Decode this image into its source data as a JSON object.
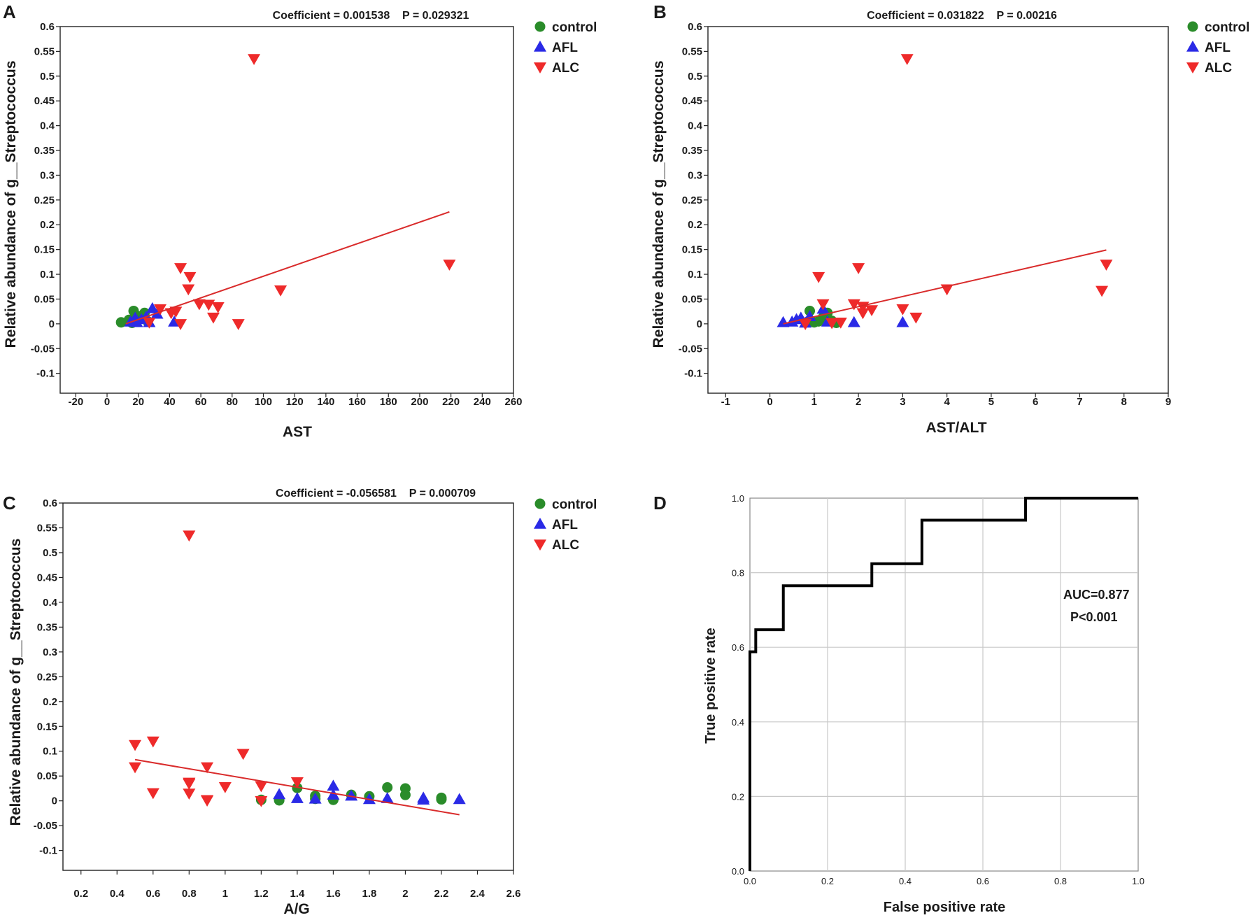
{
  "chart_data": [
    {
      "panel": "A",
      "type": "scatter",
      "stats": "Coefficient = 0.001538    P = 0.029321",
      "xlabel": "AST",
      "ylabel": "Relative abundance of g__Streptococcus",
      "xlim": [
        -30,
        260
      ],
      "ylim": [
        -0.14,
        0.6
      ],
      "xticks": [
        -20,
        0,
        20,
        40,
        60,
        80,
        100,
        120,
        140,
        160,
        180,
        200,
        220,
        240,
        260
      ],
      "yticks": [
        -0.1,
        -0.05,
        0,
        0.05,
        0.1,
        0.15,
        0.2,
        0.25,
        0.3,
        0.35,
        0.4,
        0.45,
        0.5,
        0.55,
        0.6
      ],
      "legend_position": "top-right outside",
      "fit_line": {
        "x": [
          12,
          219
        ],
        "y": [
          0.0,
          0.226
        ]
      },
      "series": [
        {
          "name": "control",
          "marker": "circle",
          "color": "#2a8c2a",
          "points": [
            [
              9,
              0.003
            ],
            [
              14,
              0.008
            ],
            [
              17,
              0.026
            ],
            [
              20,
              0.015
            ],
            [
              24,
              0.022
            ],
            [
              26,
              0.005
            ],
            [
              16,
              0.002
            ]
          ]
        },
        {
          "name": "AFL",
          "marker": "triangle-up",
          "color": "#2a2ae6",
          "points": [
            [
              15,
              0.004
            ],
            [
              19,
              0.003
            ],
            [
              22,
              0.009
            ],
            [
              25,
              0.014
            ],
            [
              27,
              0.003
            ],
            [
              29,
              0.031
            ],
            [
              32,
              0.02
            ],
            [
              43,
              0.004
            ],
            [
              18,
              0.012
            ]
          ]
        },
        {
          "name": "ALC",
          "marker": "triangle-down",
          "color": "#ee2a2a",
          "points": [
            [
              94,
              0.535
            ],
            [
              219,
              0.12
            ],
            [
              47,
              0.113
            ],
            [
              53,
              0.095
            ],
            [
              52,
              0.07
            ],
            [
              111,
              0.068
            ],
            [
              41,
              0.022
            ],
            [
              44,
              0.025
            ],
            [
              59,
              0.04
            ],
            [
              65,
              0.039
            ],
            [
              71,
              0.034
            ],
            [
              34,
              0.03
            ],
            [
              68,
              0.013
            ],
            [
              84,
              0.0
            ],
            [
              47,
              0.0
            ],
            [
              27,
              0.003
            ]
          ]
        }
      ]
    },
    {
      "panel": "B",
      "type": "scatter",
      "stats": "Coefficient = 0.031822    P = 0.00216",
      "xlabel": "AST/ALT",
      "ylabel": "Relative abundance of g__Streptococcus",
      "xlim": [
        -1.4,
        9
      ],
      "ylim": [
        -0.14,
        0.6
      ],
      "xticks": [
        -1,
        0,
        1,
        2,
        3,
        4,
        5,
        6,
        7,
        8,
        9
      ],
      "yticks": [
        -0.1,
        -0.05,
        0,
        0.05,
        0.1,
        0.15,
        0.2,
        0.25,
        0.3,
        0.35,
        0.4,
        0.45,
        0.5,
        0.55,
        0.6
      ],
      "legend_position": "top-right outside",
      "fit_line": {
        "x": [
          0.3,
          7.6
        ],
        "y": [
          0.0,
          0.149
        ]
      },
      "series": [
        {
          "name": "control",
          "marker": "circle",
          "color": "#2a8c2a",
          "points": [
            [
              0.9,
              0.026
            ],
            [
              1.0,
              0.003
            ],
            [
              1.2,
              0.013
            ],
            [
              1.3,
              0.022
            ],
            [
              1.4,
              0.006
            ],
            [
              1.5,
              0.002
            ],
            [
              1.1,
              0.005
            ]
          ]
        },
        {
          "name": "AFL",
          "marker": "triangle-up",
          "color": "#2a2ae6",
          "points": [
            [
              0.3,
              0.003
            ],
            [
              0.5,
              0.004
            ],
            [
              0.6,
              0.009
            ],
            [
              0.7,
              0.012
            ],
            [
              0.9,
              0.015
            ],
            [
              1.2,
              0.03
            ],
            [
              1.3,
              0.004
            ],
            [
              1.9,
              0.003
            ],
            [
              3.0,
              0.003
            ],
            [
              0.8,
              0.002
            ]
          ]
        },
        {
          "name": "ALC",
          "marker": "triangle-down",
          "color": "#ee2a2a",
          "points": [
            [
              3.1,
              0.535
            ],
            [
              7.6,
              0.12
            ],
            [
              2.0,
              0.113
            ],
            [
              1.1,
              0.095
            ],
            [
              7.5,
              0.067
            ],
            [
              4.0,
              0.07
            ],
            [
              1.2,
              0.04
            ],
            [
              1.9,
              0.04
            ],
            [
              2.1,
              0.035
            ],
            [
              2.3,
              0.028
            ],
            [
              3.0,
              0.03
            ],
            [
              3.3,
              0.013
            ],
            [
              0.8,
              0.0
            ],
            [
              1.6,
              0.003
            ],
            [
              1.4,
              0.002
            ],
            [
              2.1,
              0.022
            ]
          ]
        }
      ]
    },
    {
      "panel": "C",
      "type": "scatter",
      "stats": "Coefficient = -0.056581    P = 0.000709",
      "xlabel": "A/G",
      "ylabel": "Relative abundance of g__Streptococcus",
      "xlim": [
        0.1,
        2.6
      ],
      "ylim": [
        -0.14,
        0.6
      ],
      "xticks": [
        0.2,
        0.4,
        0.6,
        0.8,
        1,
        1.2,
        1.4,
        1.6,
        1.8,
        2,
        2.2,
        2.4,
        2.6
      ],
      "yticks": [
        -0.1,
        -0.05,
        0,
        0.05,
        0.1,
        0.15,
        0.2,
        0.25,
        0.3,
        0.35,
        0.4,
        0.45,
        0.5,
        0.55,
        0.6
      ],
      "legend_position": "top-right outside",
      "fit_line": {
        "x": [
          0.5,
          2.3
        ],
        "y": [
          0.083,
          -0.028
        ]
      },
      "series": [
        {
          "name": "control",
          "marker": "circle",
          "color": "#2a8c2a",
          "points": [
            [
              1.2,
              0.002
            ],
            [
              1.3,
              0.001
            ],
            [
              1.4,
              0.026
            ],
            [
              1.5,
              0.01
            ],
            [
              1.6,
              0.002
            ],
            [
              1.7,
              0.012
            ],
            [
              1.8,
              0.009
            ],
            [
              1.9,
              0.027
            ],
            [
              2.0,
              0.025
            ],
            [
              2.0,
              0.012
            ],
            [
              2.2,
              0.003
            ],
            [
              2.2,
              0.006
            ],
            [
              1.5,
              0.004
            ]
          ]
        },
        {
          "name": "AFL",
          "marker": "triangle-up",
          "color": "#2a2ae6",
          "points": [
            [
              1.3,
              0.013
            ],
            [
              1.4,
              0.005
            ],
            [
              1.5,
              0.004
            ],
            [
              1.6,
              0.03
            ],
            [
              1.6,
              0.012
            ],
            [
              1.7,
              0.01
            ],
            [
              1.8,
              0.003
            ],
            [
              1.9,
              0.005
            ],
            [
              2.1,
              0.006
            ],
            [
              2.1,
              0.002
            ],
            [
              2.3,
              0.003
            ]
          ]
        },
        {
          "name": "ALC",
          "marker": "triangle-down",
          "color": "#ee2a2a",
          "points": [
            [
              0.8,
              0.535
            ],
            [
              0.5,
              0.113
            ],
            [
              0.6,
              0.12
            ],
            [
              0.5,
              0.068
            ],
            [
              0.6,
              0.016
            ],
            [
              0.8,
              0.037
            ],
            [
              0.8,
              0.015
            ],
            [
              0.8,
              0.035
            ],
            [
              0.9,
              0.068
            ],
            [
              0.9,
              0.001
            ],
            [
              1.0,
              0.028
            ],
            [
              1.1,
              0.095
            ],
            [
              1.2,
              0.03
            ],
            [
              1.2,
              0.0
            ],
            [
              1.4,
              0.038
            ],
            [
              0.9,
              0.002
            ]
          ]
        }
      ]
    },
    {
      "panel": "D",
      "type": "line",
      "subtype": "roc",
      "xlabel": "False positive rate",
      "ylabel": "True positive rate",
      "xlim": [
        0,
        1
      ],
      "ylim": [
        0,
        1
      ],
      "xticks": [
        "0.0",
        "0.2",
        "0.4",
        "0.6",
        "0.8",
        "1.0"
      ],
      "yticks": [
        "0.0",
        "0.2",
        "0.4",
        "0.6",
        "0.8",
        "1.0"
      ],
      "grid": true,
      "annotations": [
        "AUC=0.877",
        "P<0.001"
      ],
      "curve": {
        "x": [
          0,
          0,
          0.015,
          0.015,
          0.086,
          0.086,
          0.314,
          0.314,
          0.443,
          0.443,
          0.71,
          0.71,
          1.0
        ],
        "y": [
          0,
          0.588,
          0.588,
          0.647,
          0.647,
          0.765,
          0.765,
          0.824,
          0.824,
          0.941,
          0.941,
          1.0,
          1.0
        ]
      }
    }
  ]
}
